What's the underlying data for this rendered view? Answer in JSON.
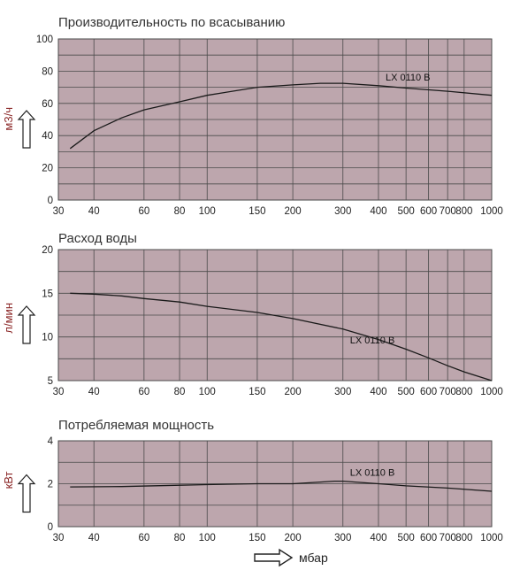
{
  "colors": {
    "plot_background": "#bda6ad",
    "grid": "#4a4a4a",
    "curve": "#1a1a1a",
    "ylabel": "#8a2525"
  },
  "x_axis_label": "мбар",
  "chart_data": [
    {
      "type": "line",
      "title": "Производительность по всасыванию",
      "ylabel": "м3/ч",
      "xlabel": "мбар",
      "x_scale": "log",
      "xlim": [
        30,
        1000
      ],
      "ylim": [
        0,
        100
      ],
      "x_ticks": [
        30,
        40,
        60,
        80,
        100,
        150,
        200,
        300,
        400,
        500,
        600,
        700,
        800,
        1000
      ],
      "y_ticks": [
        0,
        20,
        40,
        60,
        80,
        100
      ],
      "grid": true,
      "series": [
        {
          "name": "LX 0110 B",
          "x": [
            33,
            40,
            50,
            60,
            80,
            100,
            150,
            200,
            250,
            300,
            400,
            500,
            700,
            1000
          ],
          "y": [
            32,
            43,
            51,
            56,
            61,
            65,
            70,
            71.5,
            72.5,
            72.5,
            71,
            69.5,
            67.5,
            65
          ]
        }
      ]
    },
    {
      "type": "line",
      "title": "Расход воды",
      "ylabel": "л/мин",
      "xlabel": "мбар",
      "x_scale": "log",
      "xlim": [
        30,
        1000
      ],
      "ylim": [
        5,
        20
      ],
      "x_ticks": [
        30,
        40,
        60,
        80,
        100,
        150,
        200,
        300,
        400,
        500,
        600,
        700,
        800,
        1000
      ],
      "y_ticks": [
        5,
        10,
        15,
        20
      ],
      "grid": true,
      "series": [
        {
          "name": "LX 0110 B",
          "x": [
            33,
            40,
            50,
            60,
            80,
            100,
            150,
            200,
            300,
            400,
            500,
            600,
            700,
            800,
            1000
          ],
          "y": [
            15,
            14.9,
            14.7,
            14.4,
            14.0,
            13.5,
            12.8,
            12.1,
            10.9,
            9.7,
            8.6,
            7.6,
            6.7,
            6.0,
            5.0
          ]
        }
      ]
    },
    {
      "type": "line",
      "title": "Потребляемая мощность",
      "ylabel": "кВт",
      "xlabel": "мбар",
      "x_scale": "log",
      "xlim": [
        30,
        1000
      ],
      "ylim": [
        0,
        4
      ],
      "x_ticks": [
        30,
        40,
        60,
        80,
        100,
        150,
        200,
        300,
        400,
        500,
        600,
        700,
        800,
        1000
      ],
      "y_ticks": [
        0,
        2,
        4
      ],
      "grid": true,
      "series": [
        {
          "name": "LX 0110 B",
          "x": [
            33,
            50,
            80,
            100,
            150,
            200,
            250,
            280,
            300,
            400,
            500,
            700,
            1000
          ],
          "y": [
            1.85,
            1.87,
            1.93,
            1.96,
            2.0,
            2.0,
            2.08,
            2.12,
            2.12,
            2.0,
            1.9,
            1.8,
            1.65
          ]
        }
      ]
    }
  ]
}
